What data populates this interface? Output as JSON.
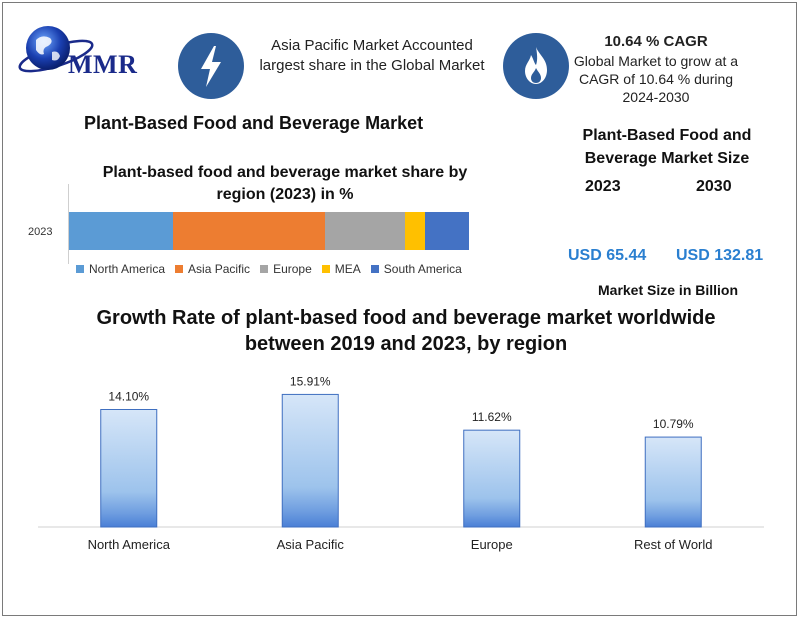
{
  "logo": {
    "text": "MMR"
  },
  "headline": "Asia Pacific Market Accounted largest share in the Global Market",
  "cagr": {
    "title": "10.64 % CAGR",
    "text": "Global Market to grow at a CAGR of 10.64 % during 2024-2030"
  },
  "main_title": "Plant-Based Food and Beverage Market",
  "market_size": {
    "title": "Plant-Based Food and Beverage Market Size",
    "year_1": "2023",
    "year_2": "2030",
    "value_1": "USD 65.44",
    "value_2": "USD 132.81",
    "unit": "Market Size in Billion"
  },
  "icons": {
    "left_circle": "lightning-icon",
    "right_circle": "flame-icon",
    "logo": "globe-icon"
  },
  "colors": {
    "circle": "#2e5d9a",
    "accent_value": "#2a7fd0",
    "north_america": "#5b9bd5",
    "asia_pacific": "#ed7d31",
    "europe": "#a5a5a5",
    "mea": "#ffc000",
    "south_america": "#4472c4"
  },
  "chart_data": [
    {
      "type": "bar",
      "stacked": true,
      "orientation": "horizontal",
      "title": "Plant-based food and beverage market share by region (2023) in %",
      "categories": [
        "2023"
      ],
      "series": [
        {
          "name": "North America",
          "values": [
            26
          ]
        },
        {
          "name": "Asia Pacific",
          "values": [
            38
          ]
        },
        {
          "name": "Europe",
          "values": [
            20
          ]
        },
        {
          "name": "MEA",
          "values": [
            5
          ]
        },
        {
          "name": "South America",
          "values": [
            11
          ]
        }
      ],
      "legend": "bottom"
    },
    {
      "type": "bar",
      "title": "Growth Rate of plant-based food and beverage market worldwide between 2019 and 2023, by region",
      "categories": [
        "North America",
        "Asia Pacific",
        "Europe",
        "Rest of World"
      ],
      "values": [
        14.1,
        15.91,
        11.62,
        10.79
      ],
      "data_labels": [
        "14.10%",
        "15.91%",
        "11.62%",
        "10.79%"
      ],
      "ylim": [
        0,
        18
      ],
      "grid": false
    }
  ]
}
